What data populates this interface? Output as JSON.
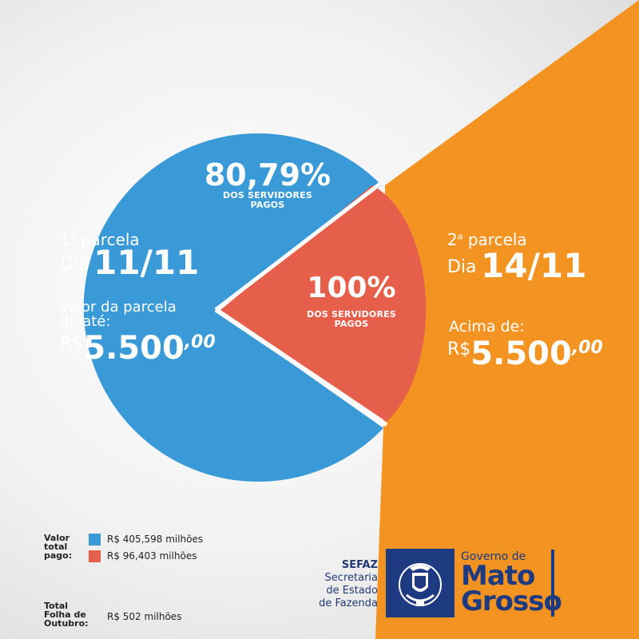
{
  "colors": {
    "blue": "#3a9ad8",
    "red": "#e65f4b",
    "orange": "#f39322",
    "navy": "#1e3a80"
  },
  "blue_section": {
    "pct": "80,79%",
    "pct_label_1": "DOS SERVIDORES",
    "pct_label_2": "PAGOS",
    "parcel_ordinal": "1",
    "parcel_suffix": "a",
    "parcel_word": "parcela",
    "day_prefix": "Dia",
    "date": "11/11",
    "value_label_1": "Valor da parcela",
    "value_label_2": "de até:",
    "currency": "R$",
    "amount": "5.500",
    "cents": ",00"
  },
  "red_section": {
    "pct": "100%",
    "pct_label_1": "DOS SERVIDORES",
    "pct_label_2": "PAGOS"
  },
  "orange_section": {
    "parcel_ordinal": "2",
    "parcel_suffix": "a",
    "parcel_word": "parcela",
    "day_prefix": "Dia",
    "date": "14/11",
    "value_label": "Acima de:",
    "currency": "R$",
    "amount": "5.500",
    "cents": ",00"
  },
  "legend": {
    "label_lines": [
      "Valor",
      "total",
      "pago:"
    ],
    "items": [
      {
        "text": "R$ 405,598 milhões",
        "color": "#3a9ad8"
      },
      {
        "text": "R$ 96,403 milhões",
        "color": "#e65f4b"
      }
    ],
    "total_label_lines": [
      "Total",
      "Folha de",
      "Outubro:"
    ],
    "total_value": "R$  502 milhões"
  },
  "branding": {
    "sefaz_lines": [
      "SEFAZ",
      "Secretaria",
      "de Estado",
      "de Fazenda"
    ],
    "gov_line": "Governo de",
    "mato": "Mato",
    "grosso": "Grosso",
    "crest_icon": "mato-grosso-coat-of-arms-icon"
  }
}
